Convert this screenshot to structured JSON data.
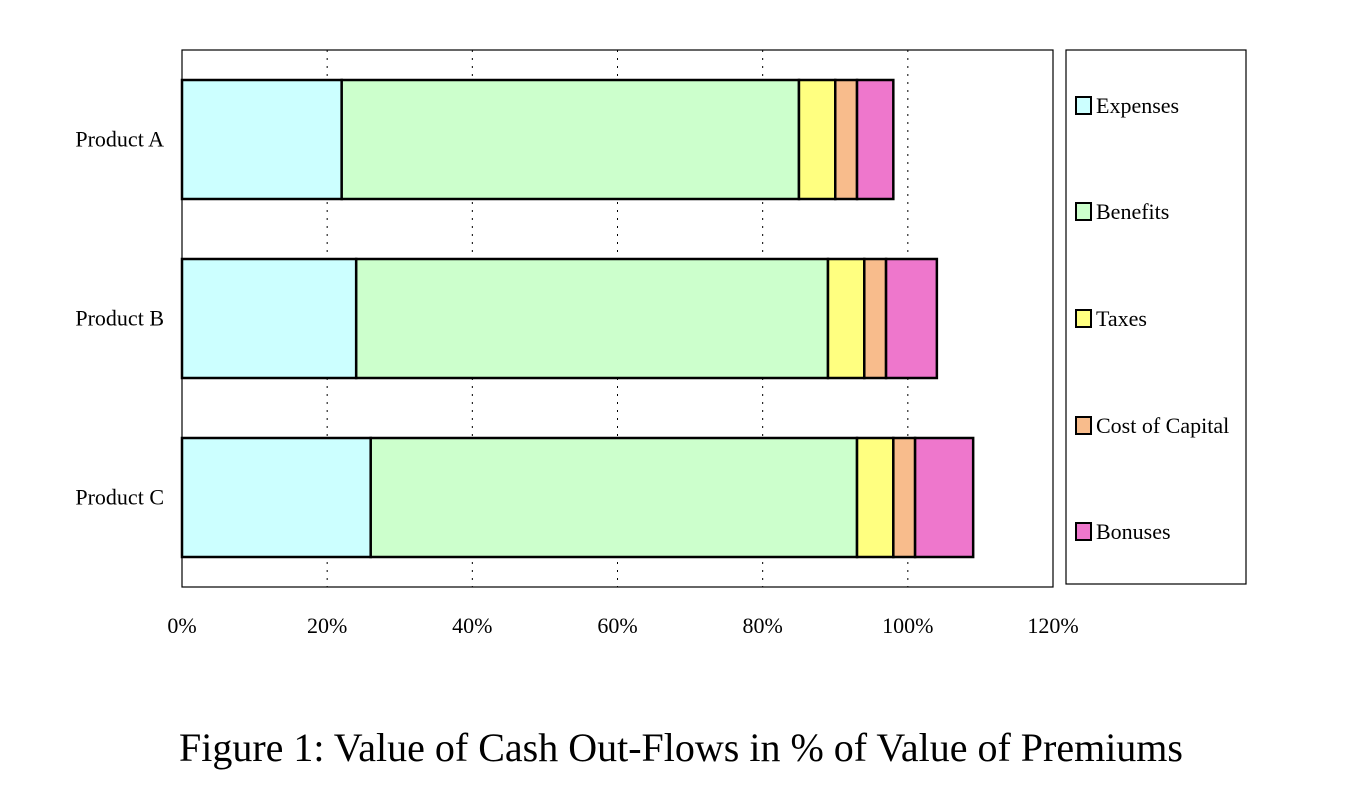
{
  "chart_data": {
    "type": "bar",
    "orientation": "horizontal",
    "stacked": true,
    "categories": [
      "Product A",
      "Product B",
      "Product C"
    ],
    "series": [
      {
        "name": "Expenses",
        "values": [
          22,
          24,
          26
        ],
        "color": "#ccffff"
      },
      {
        "name": "Benefits",
        "values": [
          63,
          65,
          67
        ],
        "color": "#ccffcc"
      },
      {
        "name": "Taxes",
        "values": [
          5,
          5,
          5
        ],
        "color": "#ffff80"
      },
      {
        "name": "Cost of Capital",
        "values": [
          3,
          3,
          3
        ],
        "color": "#f8bc8c"
      },
      {
        "name": "Bonuses",
        "values": [
          5,
          7,
          8
        ],
        "color": "#ee77cc"
      }
    ],
    "xlim": [
      0,
      120
    ],
    "x_ticks": [
      "0%",
      "20%",
      "40%",
      "60%",
      "80%",
      "100%",
      "120%"
    ],
    "x_tick_values": [
      0,
      20,
      40,
      60,
      80,
      100,
      120
    ],
    "grid": "vertical dotted",
    "legend_position": "right",
    "title": "",
    "xlabel": "",
    "ylabel": ""
  },
  "caption": "Figure 1: Value of Cash Out-Flows in % of Value of Premiums"
}
